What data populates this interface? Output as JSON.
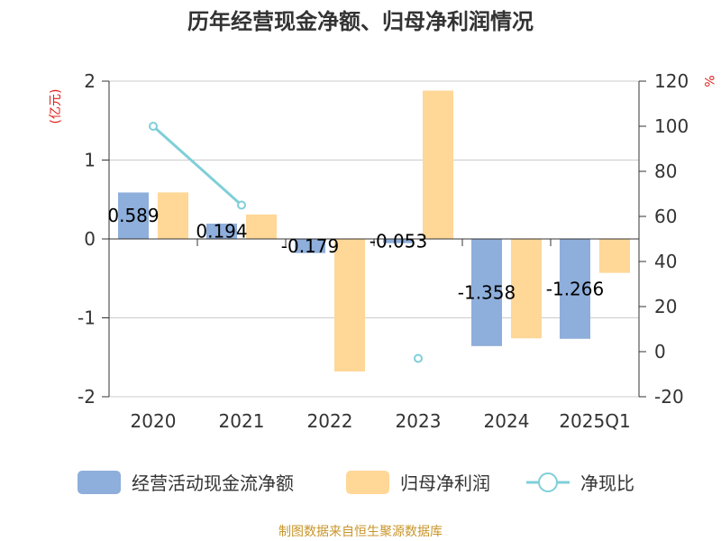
{
  "chart_data": {
    "type": "bar",
    "title": "历年经营现金净额、归母净利润情况",
    "categories": [
      "2020",
      "2021",
      "2022",
      "2023",
      "2024",
      "2025Q1"
    ],
    "y_left": {
      "name": "(亿元)",
      "min": -2,
      "max": 2,
      "ticks": [
        -2,
        -1,
        0,
        1,
        2
      ]
    },
    "y_right": {
      "name": "%",
      "min": -20,
      "max": 120,
      "ticks": [
        -20,
        0,
        20,
        40,
        60,
        80,
        100,
        120
      ]
    },
    "series": [
      {
        "name": "经营活动现金流净额",
        "type": "bar",
        "axis": "left",
        "color": "#8eaedb",
        "values": [
          0.589,
          0.194,
          -0.179,
          -0.053,
          -1.358,
          -1.266
        ],
        "labels": [
          "0.589",
          "0.194",
          "-0.179",
          "-0.053",
          "-1.358",
          "-1.266"
        ]
      },
      {
        "name": "归母净利润",
        "type": "bar",
        "axis": "left",
        "color": "#ffd797",
        "values": [
          0.59,
          0.31,
          -1.68,
          1.88,
          -1.26,
          -0.43
        ]
      },
      {
        "name": "净现比",
        "type": "line",
        "axis": "right",
        "color": "#7fcfd8",
        "values": [
          100,
          65,
          null,
          -3,
          null,
          null
        ]
      }
    ],
    "grid": true,
    "legend_position": "bottom"
  },
  "source": "制图数据来自恒生聚源数据库"
}
